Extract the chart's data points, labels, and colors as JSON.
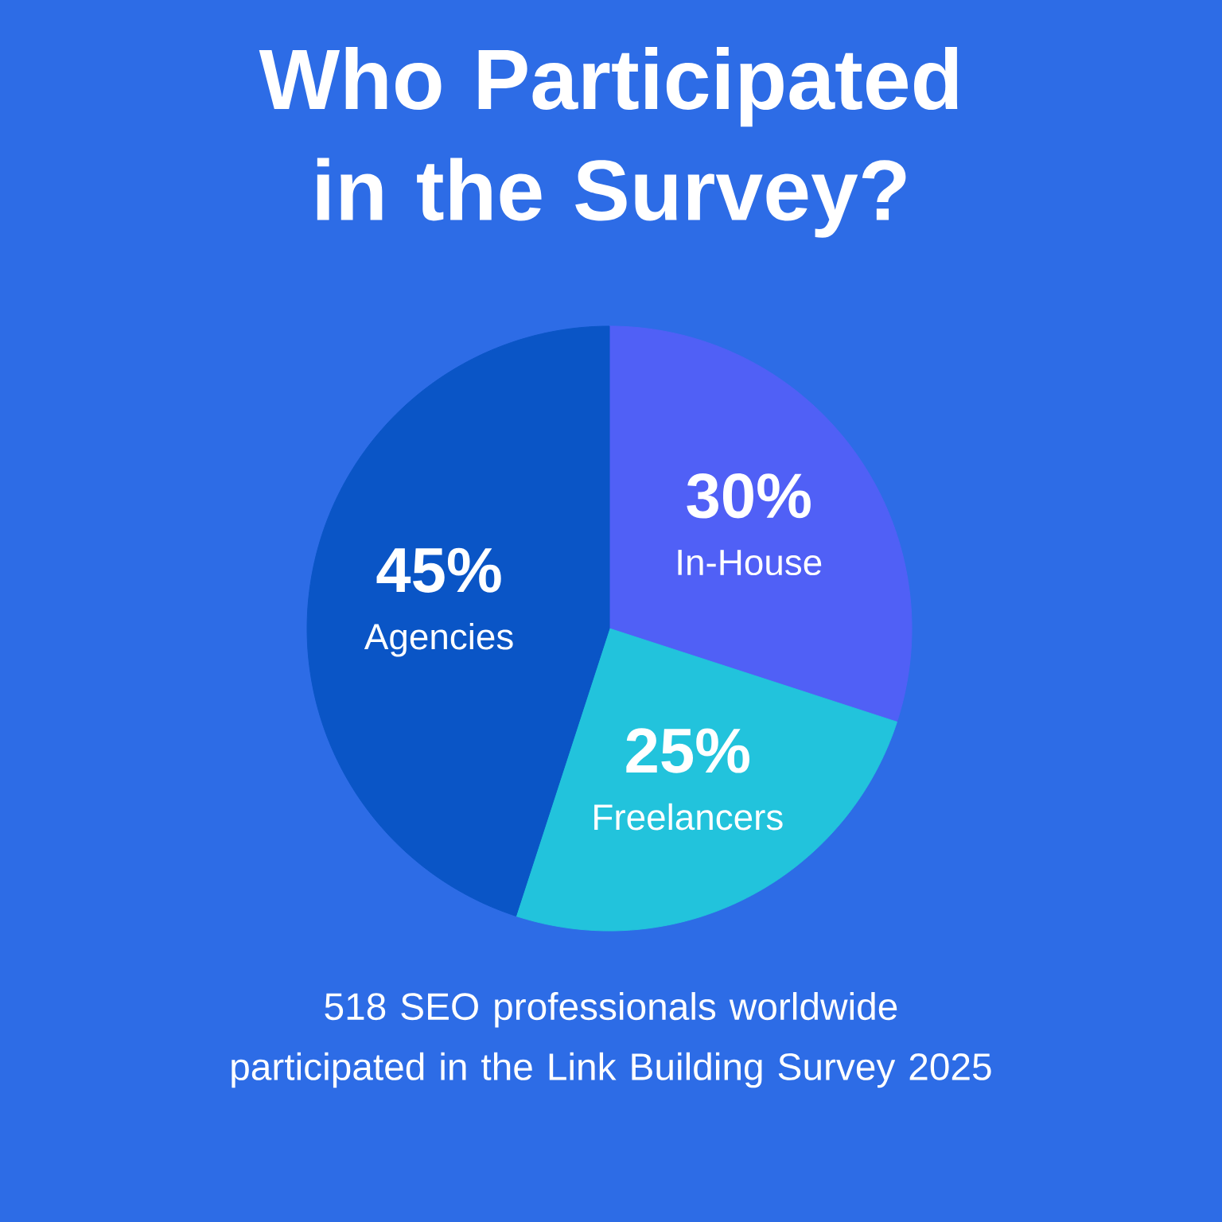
{
  "chart_data": {
    "type": "pie",
    "title": "Who Participated in the Survey?",
    "categories": [
      "In-House",
      "Freelancers",
      "Agencies"
    ],
    "values": [
      30,
      25,
      45
    ],
    "value_labels": [
      "30%",
      "25%",
      "45%"
    ],
    "colors": [
      "#5060f6",
      "#22c3dc",
      "#0a55c6"
    ],
    "annotations": [
      "518 SEO professionals worldwide participated in the Link Building Survey 2025"
    ]
  }
}
